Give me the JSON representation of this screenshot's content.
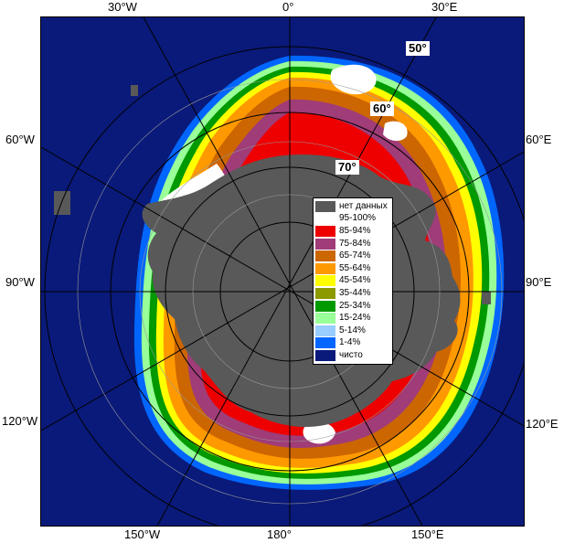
{
  "map": {
    "longitude_labels": {
      "top_left": "30°W",
      "top_center": "0°",
      "top_right": "30°E",
      "left_upper": "60°W",
      "left_middle": "90°W",
      "left_lower": "120°W",
      "right_upper": "60°E",
      "right_middle": "90°E",
      "right_lower": "120°E",
      "bottom_left": "150°W",
      "bottom_center": "180°",
      "bottom_right": "150°E"
    },
    "latitude_labels": {
      "lat_50": "50°",
      "lat_60": "60°",
      "lat_70": "70°"
    },
    "colors": {
      "ocean": "#0a1a7a",
      "land": "#595959",
      "no_data": "#595959"
    }
  },
  "legend": {
    "items": [
      {
        "label": "нет данных",
        "color": "#595959"
      },
      {
        "label": "95-100%",
        "color": "#ffffff"
      },
      {
        "label": "85-94%",
        "color": "#ee0000"
      },
      {
        "label": "75-84%",
        "color": "#a03c78"
      },
      {
        "label": "65-74%",
        "color": "#cc6600"
      },
      {
        "label": "55-64%",
        "color": "#ff9900"
      },
      {
        "label": "45-54%",
        "color": "#ffff00"
      },
      {
        "label": "35-44%",
        "color": "#8c9a00"
      },
      {
        "label": "25-34%",
        "color": "#009900"
      },
      {
        "label": "15-24%",
        "color": "#99ff99"
      },
      {
        "label": "5-14%",
        "color": "#99ccff"
      },
      {
        "label": "1-4%",
        "color": "#0066ff"
      },
      {
        "label": "чисто",
        "color": "#0a1a7a"
      }
    ]
  }
}
